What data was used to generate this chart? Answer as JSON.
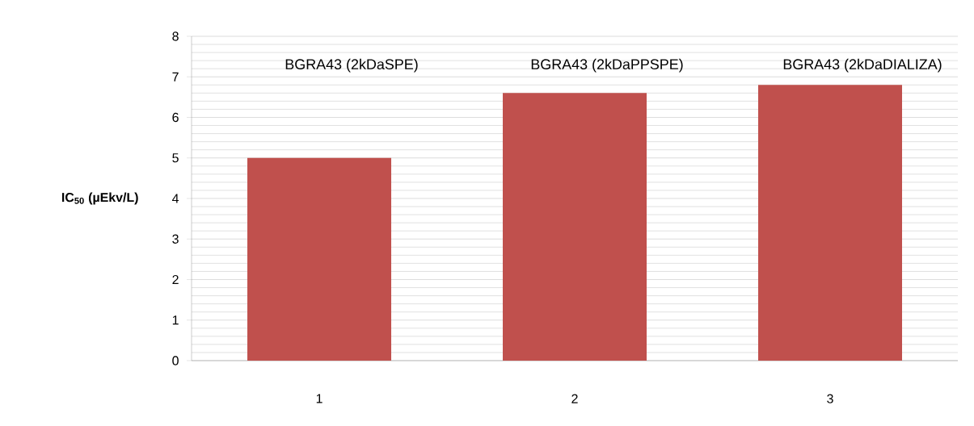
{
  "chart_data": {
    "type": "bar",
    "ylabel": "IC$_{50}$ (µEkv/L)",
    "categories": [
      "1",
      "2",
      "3"
    ],
    "values": [
      5.0,
      6.6,
      6.8
    ],
    "color": "#c0504d",
    "ylim": [
      0,
      8
    ],
    "yticks": [
      0,
      1,
      2,
      3,
      4,
      5,
      6,
      7,
      8
    ],
    "grid": "y",
    "annotations": [
      "BGRA43 (2kDaSPE)",
      "BGRA43 (2kDaPPSPE)",
      "BGRA43 (2kDaDIALIZA)"
    ]
  }
}
